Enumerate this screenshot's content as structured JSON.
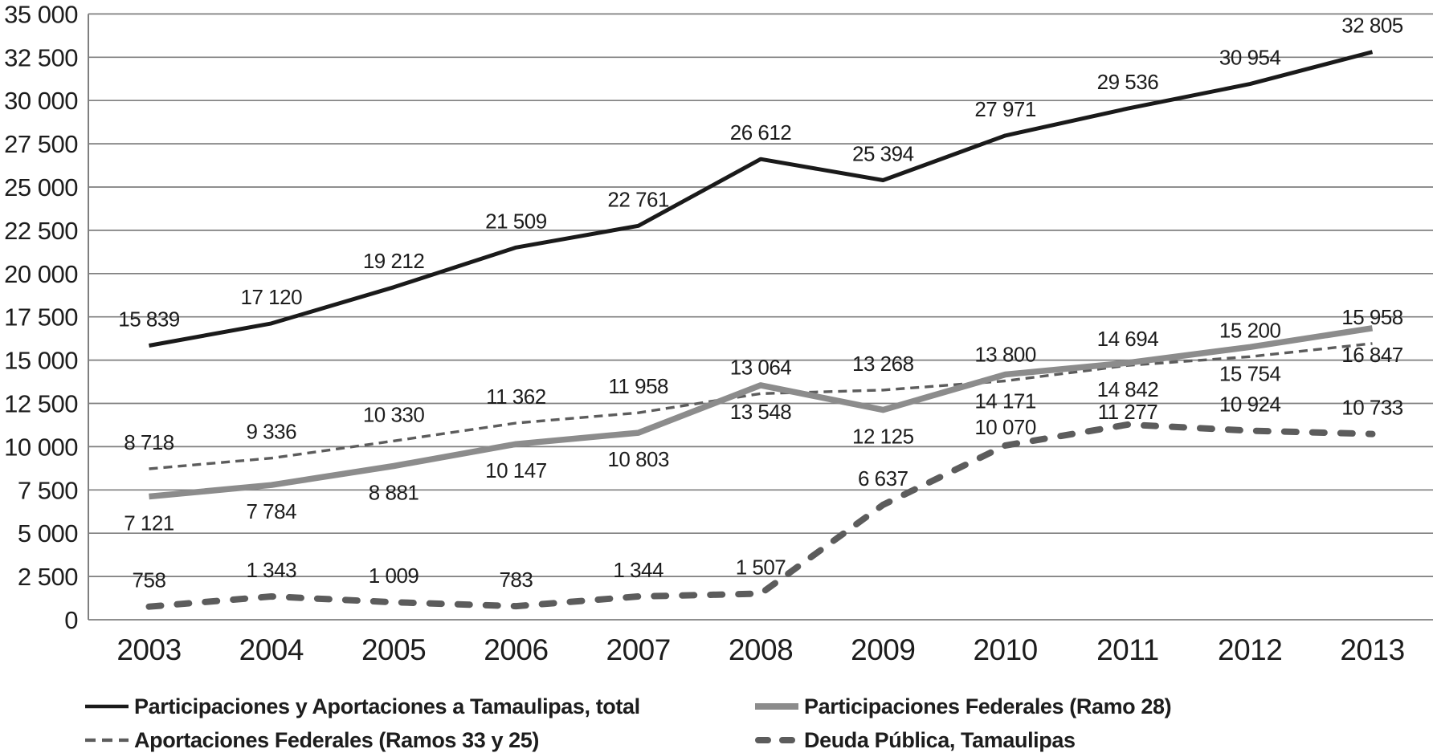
{
  "chart_data": {
    "type": "line",
    "title": "",
    "xlabel": "",
    "ylabel": "",
    "categories": [
      "2003",
      "2004",
      "2005",
      "2006",
      "2007",
      "2008",
      "2009",
      "2010",
      "2011",
      "2012",
      "2013"
    ],
    "ylim": [
      0,
      35000
    ],
    "ytick_step": 2500,
    "ytick_labels": [
      "0",
      "2 500",
      "5 000",
      "7 500",
      "10 000",
      "12 500",
      "15 000",
      "17 500",
      "20 000",
      "22 500",
      "25 000",
      "27 500",
      "30 000",
      "32 500",
      "35 000"
    ],
    "grid": "horizontal",
    "gridline_color": "#7f7f7f",
    "legend_position": "bottom",
    "number_format": "space-thousands",
    "series": [
      {
        "name": "Participaciones y Aportaciones a Tamaulipas, total",
        "values": [
          15839,
          17120,
          19212,
          21509,
          22761,
          26612,
          25394,
          27971,
          29536,
          30954,
          32805
        ],
        "labels": [
          "15 839",
          "17 120",
          "19 212",
          "21 509",
          "22 761",
          "26 612",
          "25 394",
          "27 971",
          "29 536",
          "30 954",
          "32 805"
        ],
        "line_style": "solid",
        "thickness": "medium",
        "color": "#1a1a1a",
        "label_position": "above"
      },
      {
        "name": "Participaciones Federales (Ramo 28)",
        "values": [
          7121,
          7784,
          8881,
          10147,
          10803,
          13548,
          12125,
          14171,
          14842,
          15754,
          16847
        ],
        "labels": [
          "7 121",
          "7 784",
          "8 881",
          "10 147",
          "10 803",
          "13 548",
          "12 125",
          "14 171",
          "14 842",
          "15 754",
          "16 847"
        ],
        "line_style": "solid",
        "thickness": "thick",
        "color": "#8c8c8c",
        "label_position": "below"
      },
      {
        "name": "Aportaciones Federales (Ramos 33 y 25)",
        "values": [
          8718,
          9336,
          10330,
          11362,
          11958,
          13064,
          13268,
          13800,
          14694,
          15200,
          15958
        ],
        "labels": [
          "8 718",
          "9 336",
          "10 330",
          "11 362",
          "11 958",
          "13 064",
          "13 268",
          "13 800",
          "14 694",
          "15 200",
          "15 958"
        ],
        "line_style": "dashed-thin",
        "thickness": "thin",
        "color": "#5c5c5c",
        "label_position": "above"
      },
      {
        "name": "Deuda Pública, Tamaulipas",
        "values": [
          758,
          1343,
          1009,
          783,
          1344,
          1507,
          6637,
          10070,
          11277,
          10924,
          10733
        ],
        "labels": [
          "758",
          "1 343",
          "1 009",
          "783",
          "1 344",
          "1 507",
          "6 637",
          "10 070",
          "11 277",
          "10 924",
          "10 733"
        ],
        "line_style": "dashed-thick",
        "thickness": "thick",
        "color": "#5c5c5c",
        "label_position": "above"
      }
    ]
  },
  "legend": {
    "rows": 2,
    "columns": 2
  }
}
